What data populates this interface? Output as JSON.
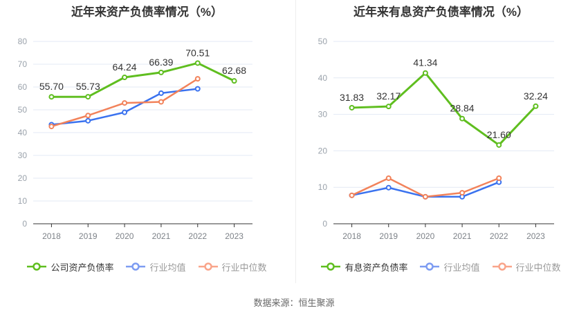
{
  "page": {
    "source_text": "数据来源：恒生聚源"
  },
  "style": {
    "grid_color": "#e3e9f4",
    "axis_color": "#333333",
    "label_color": "#333333",
    "green": "#5fbe1f",
    "blue": "#3a72ef",
    "orange": "#f2825a",
    "legend_blue": "#7d9cf2",
    "legend_orange": "#f9a48a"
  },
  "chart_data": [
    {
      "type": "line",
      "title": "近年来资产负债率情况（%）",
      "categories": [
        "2018",
        "2019",
        "2020",
        "2021",
        "2022",
        "2023"
      ],
      "ylim": [
        0,
        80
      ],
      "ytick_step": 10,
      "grid": true,
      "legend_position": "bottom",
      "series": [
        {
          "name": "公司资产负债率",
          "color": "#5fbe1f",
          "width": 3,
          "values": [
            55.7,
            55.73,
            64.24,
            66.39,
            70.51,
            62.68
          ],
          "labels": [
            "55.70",
            "55.73",
            "64.24",
            "66.39",
            "70.51",
            "62.68"
          ]
        },
        {
          "name": "行业均值",
          "color": "#3a72ef",
          "legend_color": "#7d9cf2",
          "width": 2.5,
          "values": [
            43.5,
            45.2,
            48.9,
            57.3,
            59.2,
            null
          ]
        },
        {
          "name": "行业中位数",
          "color": "#f2825a",
          "legend_color": "#f9a48a",
          "width": 2.5,
          "values": [
            42.7,
            47.5,
            53.0,
            53.5,
            63.6,
            null
          ]
        }
      ]
    },
    {
      "type": "line",
      "title": "近年来有息资产负债率情况（%）",
      "categories": [
        "2018",
        "2019",
        "2020",
        "2021",
        "2022",
        "2023"
      ],
      "ylim": [
        0,
        50
      ],
      "ytick_step": 10,
      "grid": true,
      "legend_position": "bottom",
      "series": [
        {
          "name": "有息资产负债率",
          "color": "#5fbe1f",
          "width": 3,
          "values": [
            31.83,
            32.17,
            41.34,
            28.84,
            21.6,
            32.24
          ],
          "labels": [
            "31.83",
            "32.17",
            "41.34",
            "28.84",
            "21.60",
            "32.24"
          ]
        },
        {
          "name": "行业均值",
          "color": "#3a72ef",
          "legend_color": "#7d9cf2",
          "width": 2.5,
          "values": [
            7.8,
            9.9,
            7.4,
            7.4,
            11.4,
            null
          ]
        },
        {
          "name": "行业中位数",
          "color": "#f2825a",
          "legend_color": "#f9a48a",
          "width": 2.5,
          "values": [
            7.8,
            12.5,
            7.4,
            8.5,
            12.5,
            null
          ]
        }
      ]
    }
  ]
}
